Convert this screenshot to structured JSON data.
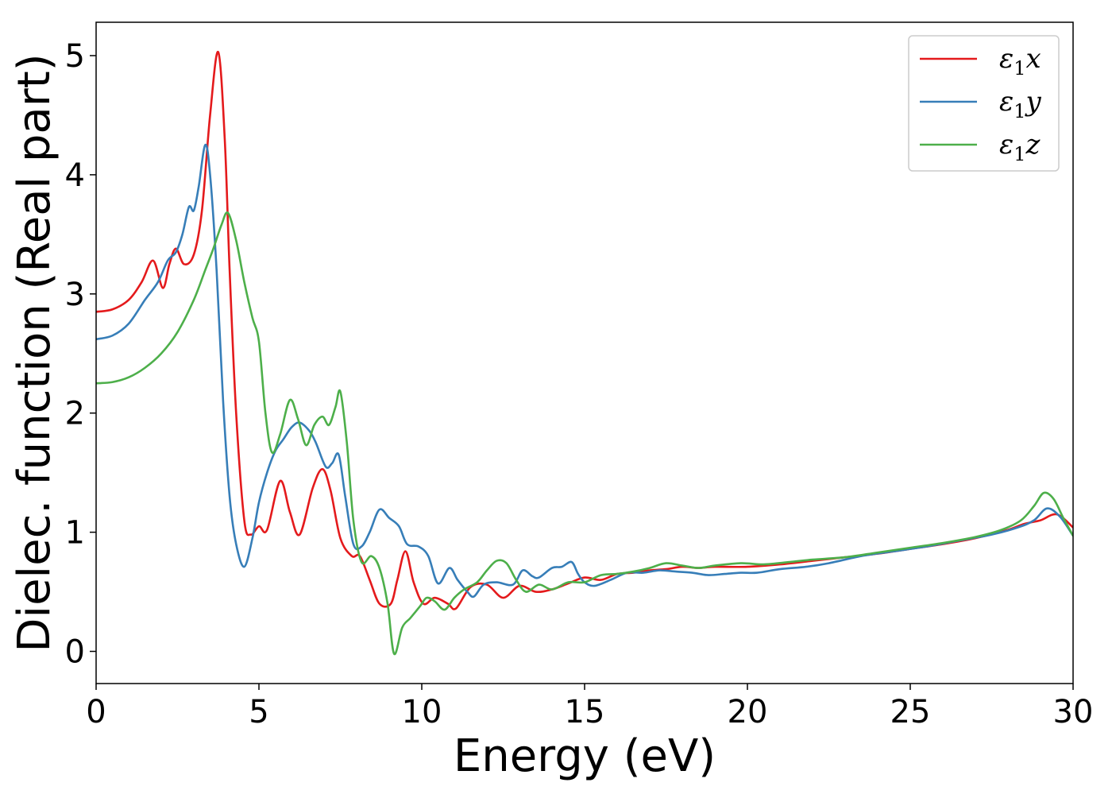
{
  "chart_data": {
    "type": "line",
    "title": "",
    "xlabel": "Energy (eV)",
    "ylabel": "Dielec. function (Real part)",
    "xlim": [
      0,
      30
    ],
    "ylim": [
      -0.27,
      5.28
    ],
    "xticks": [
      0,
      5,
      10,
      15,
      20,
      25,
      30
    ],
    "yticks": [
      0,
      1,
      2,
      3,
      4,
      5
    ],
    "grid": false,
    "legend_position": "top-right",
    "series": [
      {
        "name": "ε₁x",
        "legend_base": "ε",
        "legend_sub": "1",
        "legend_suffix": "x",
        "color": "#e41a1c",
        "points": [
          [
            0,
            2.85
          ],
          [
            0.5,
            2.87
          ],
          [
            1.0,
            2.95
          ],
          [
            1.4,
            3.1
          ],
          [
            1.75,
            3.28
          ],
          [
            2.05,
            3.05
          ],
          [
            2.25,
            3.25
          ],
          [
            2.45,
            3.38
          ],
          [
            2.7,
            3.25
          ],
          [
            3.0,
            3.33
          ],
          [
            3.25,
            3.7
          ],
          [
            3.5,
            4.5
          ],
          [
            3.75,
            5.03
          ],
          [
            3.95,
            4.3
          ],
          [
            4.1,
            3.2
          ],
          [
            4.3,
            2.0
          ],
          [
            4.55,
            1.1
          ],
          [
            4.75,
            0.98
          ],
          [
            5.0,
            1.05
          ],
          [
            5.25,
            1.02
          ],
          [
            5.65,
            1.43
          ],
          [
            5.95,
            1.17
          ],
          [
            6.25,
            0.98
          ],
          [
            6.65,
            1.37
          ],
          [
            6.95,
            1.53
          ],
          [
            7.2,
            1.35
          ],
          [
            7.5,
            0.95
          ],
          [
            7.85,
            0.8
          ],
          [
            8.1,
            0.8
          ],
          [
            8.4,
            0.6
          ],
          [
            8.7,
            0.4
          ],
          [
            9.05,
            0.4
          ],
          [
            9.25,
            0.6
          ],
          [
            9.5,
            0.84
          ],
          [
            9.75,
            0.58
          ],
          [
            10.05,
            0.4
          ],
          [
            10.4,
            0.45
          ],
          [
            10.8,
            0.4
          ],
          [
            11.05,
            0.36
          ],
          [
            11.5,
            0.54
          ],
          [
            12.0,
            0.56
          ],
          [
            12.5,
            0.45
          ],
          [
            13.0,
            0.55
          ],
          [
            13.5,
            0.5
          ],
          [
            14.0,
            0.52
          ],
          [
            14.5,
            0.57
          ],
          [
            15.0,
            0.62
          ],
          [
            15.5,
            0.6
          ],
          [
            16.0,
            0.65
          ],
          [
            16.5,
            0.66
          ],
          [
            17.0,
            0.68
          ],
          [
            17.5,
            0.69
          ],
          [
            18.0,
            0.71
          ],
          [
            18.5,
            0.7
          ],
          [
            19.0,
            0.71
          ],
          [
            20.0,
            0.71
          ],
          [
            21.0,
            0.73
          ],
          [
            22.0,
            0.76
          ],
          [
            23.0,
            0.79
          ],
          [
            24.0,
            0.82
          ],
          [
            25.0,
            0.86
          ],
          [
            26.0,
            0.9
          ],
          [
            27.0,
            0.95
          ],
          [
            28.0,
            1.02
          ],
          [
            28.5,
            1.07
          ],
          [
            29.0,
            1.1
          ],
          [
            29.5,
            1.15
          ],
          [
            30.0,
            1.04
          ]
        ]
      },
      {
        "name": "ε₁y",
        "legend_base": "ε",
        "legend_sub": "1",
        "legend_suffix": "y",
        "color": "#377eb8",
        "points": [
          [
            0,
            2.62
          ],
          [
            0.5,
            2.65
          ],
          [
            1.0,
            2.75
          ],
          [
            1.5,
            2.95
          ],
          [
            1.9,
            3.1
          ],
          [
            2.2,
            3.28
          ],
          [
            2.45,
            3.35
          ],
          [
            2.65,
            3.5
          ],
          [
            2.85,
            3.73
          ],
          [
            3.0,
            3.7
          ],
          [
            3.15,
            3.9
          ],
          [
            3.35,
            4.25
          ],
          [
            3.5,
            4.0
          ],
          [
            3.7,
            3.2
          ],
          [
            3.9,
            2.1
          ],
          [
            4.1,
            1.3
          ],
          [
            4.3,
            0.9
          ],
          [
            4.55,
            0.71
          ],
          [
            4.8,
            0.95
          ],
          [
            5.0,
            1.25
          ],
          [
            5.25,
            1.5
          ],
          [
            5.5,
            1.68
          ],
          [
            5.75,
            1.78
          ],
          [
            6.0,
            1.88
          ],
          [
            6.25,
            1.92
          ],
          [
            6.55,
            1.85
          ],
          [
            6.75,
            1.75
          ],
          [
            7.05,
            1.55
          ],
          [
            7.25,
            1.58
          ],
          [
            7.45,
            1.65
          ],
          [
            7.65,
            1.3
          ],
          [
            7.9,
            0.9
          ],
          [
            8.15,
            0.88
          ],
          [
            8.4,
            1.0
          ],
          [
            8.7,
            1.19
          ],
          [
            9.0,
            1.12
          ],
          [
            9.3,
            1.05
          ],
          [
            9.55,
            0.9
          ],
          [
            9.9,
            0.88
          ],
          [
            10.2,
            0.8
          ],
          [
            10.5,
            0.57
          ],
          [
            10.85,
            0.7
          ],
          [
            11.1,
            0.6
          ],
          [
            11.4,
            0.5
          ],
          [
            11.6,
            0.46
          ],
          [
            11.9,
            0.56
          ],
          [
            12.3,
            0.58
          ],
          [
            12.8,
            0.56
          ],
          [
            13.1,
            0.68
          ],
          [
            13.4,
            0.63
          ],
          [
            13.6,
            0.62
          ],
          [
            14.0,
            0.7
          ],
          [
            14.3,
            0.71
          ],
          [
            14.6,
            0.75
          ],
          [
            14.8,
            0.65
          ],
          [
            15.0,
            0.58
          ],
          [
            15.3,
            0.55
          ],
          [
            15.8,
            0.6
          ],
          [
            16.3,
            0.66
          ],
          [
            16.8,
            0.66
          ],
          [
            17.3,
            0.68
          ],
          [
            17.8,
            0.67
          ],
          [
            18.3,
            0.66
          ],
          [
            18.8,
            0.64
          ],
          [
            19.3,
            0.65
          ],
          [
            19.8,
            0.66
          ],
          [
            20.3,
            0.66
          ],
          [
            21.0,
            0.69
          ],
          [
            21.8,
            0.71
          ],
          [
            22.5,
            0.74
          ],
          [
            23.5,
            0.8
          ],
          [
            24.5,
            0.84
          ],
          [
            25.5,
            0.88
          ],
          [
            26.5,
            0.93
          ],
          [
            27.5,
            0.98
          ],
          [
            28.3,
            1.04
          ],
          [
            28.8,
            1.1
          ],
          [
            29.2,
            1.2
          ],
          [
            29.6,
            1.13
          ],
          [
            30.0,
            0.97
          ]
        ]
      },
      {
        "name": "ε₁z",
        "legend_base": "ε",
        "legend_sub": "1",
        "legend_suffix": "z",
        "color": "#4daf4a",
        "points": [
          [
            0,
            2.25
          ],
          [
            0.5,
            2.26
          ],
          [
            1.0,
            2.3
          ],
          [
            1.5,
            2.38
          ],
          [
            2.0,
            2.5
          ],
          [
            2.5,
            2.68
          ],
          [
            3.0,
            2.95
          ],
          [
            3.35,
            3.2
          ],
          [
            3.6,
            3.38
          ],
          [
            3.85,
            3.58
          ],
          [
            4.05,
            3.68
          ],
          [
            4.3,
            3.45
          ],
          [
            4.55,
            3.1
          ],
          [
            4.8,
            2.8
          ],
          [
            5.0,
            2.6
          ],
          [
            5.2,
            2.0
          ],
          [
            5.4,
            1.67
          ],
          [
            5.65,
            1.82
          ],
          [
            5.95,
            2.11
          ],
          [
            6.2,
            1.95
          ],
          [
            6.45,
            1.73
          ],
          [
            6.7,
            1.9
          ],
          [
            6.95,
            1.97
          ],
          [
            7.15,
            1.9
          ],
          [
            7.35,
            2.05
          ],
          [
            7.5,
            2.18
          ],
          [
            7.7,
            1.75
          ],
          [
            7.9,
            1.1
          ],
          [
            8.15,
            0.75
          ],
          [
            8.45,
            0.8
          ],
          [
            8.7,
            0.7
          ],
          [
            8.95,
            0.4
          ],
          [
            9.15,
            -0.02
          ],
          [
            9.4,
            0.2
          ],
          [
            9.65,
            0.28
          ],
          [
            9.95,
            0.38
          ],
          [
            10.15,
            0.45
          ],
          [
            10.4,
            0.42
          ],
          [
            10.7,
            0.35
          ],
          [
            11.0,
            0.45
          ],
          [
            11.3,
            0.52
          ],
          [
            11.7,
            0.58
          ],
          [
            12.0,
            0.68
          ],
          [
            12.3,
            0.76
          ],
          [
            12.6,
            0.74
          ],
          [
            12.9,
            0.6
          ],
          [
            13.2,
            0.5
          ],
          [
            13.6,
            0.56
          ],
          [
            14.0,
            0.52
          ],
          [
            14.5,
            0.58
          ],
          [
            15.0,
            0.58
          ],
          [
            15.5,
            0.64
          ],
          [
            16.0,
            0.65
          ],
          [
            16.5,
            0.67
          ],
          [
            17.0,
            0.7
          ],
          [
            17.5,
            0.74
          ],
          [
            18.0,
            0.72
          ],
          [
            18.5,
            0.7
          ],
          [
            19.0,
            0.72
          ],
          [
            19.8,
            0.74
          ],
          [
            20.5,
            0.73
          ],
          [
            21.3,
            0.75
          ],
          [
            22.0,
            0.77
          ],
          [
            23.0,
            0.79
          ],
          [
            24.0,
            0.83
          ],
          [
            25.0,
            0.87
          ],
          [
            26.0,
            0.91
          ],
          [
            27.0,
            0.96
          ],
          [
            27.8,
            1.02
          ],
          [
            28.4,
            1.1
          ],
          [
            28.8,
            1.22
          ],
          [
            29.1,
            1.33
          ],
          [
            29.4,
            1.28
          ],
          [
            29.7,
            1.12
          ],
          [
            30.0,
            0.97
          ]
        ]
      }
    ]
  }
}
